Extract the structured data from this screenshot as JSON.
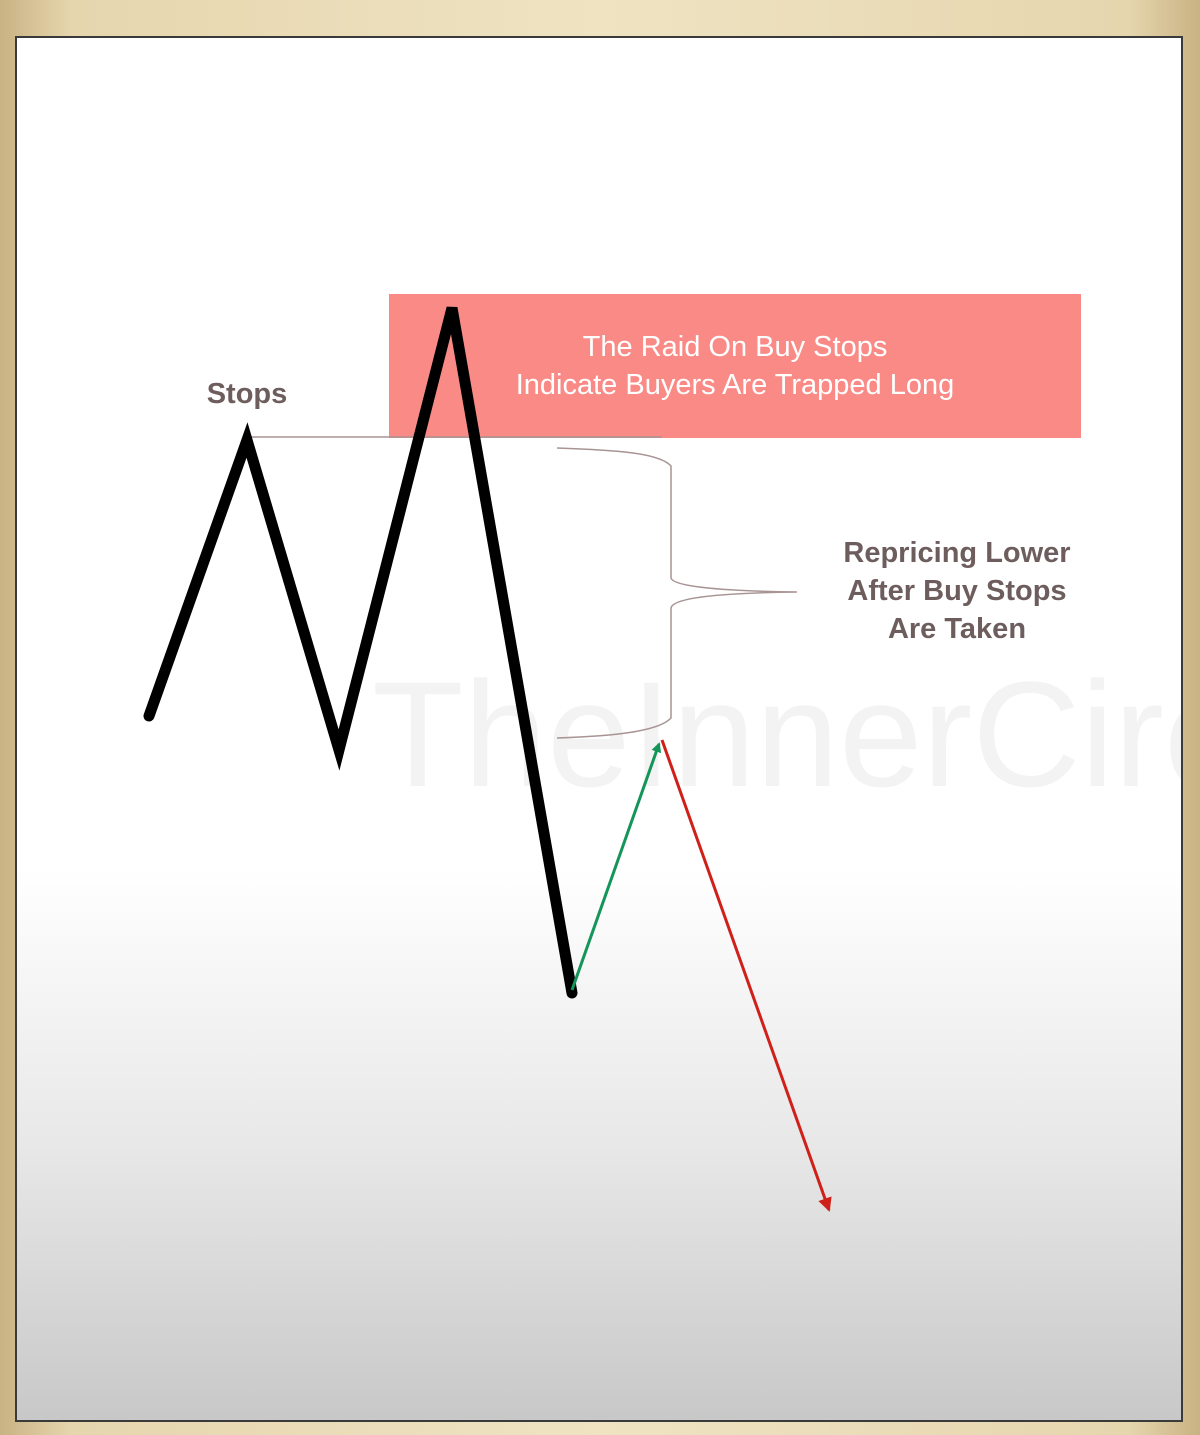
{
  "diagram": {
    "raid_box": {
      "line1": "The Raid On Buy Stops",
      "line2": "Indicate Buyers Are Trapped Long",
      "fill_color": "#f98a86"
    },
    "stops_label": "Stops",
    "repricing_label": {
      "line1": "Repricing Lower",
      "line2": "After Buy Stops",
      "line3": "Are Taken"
    },
    "watermark": "TheInnerCircle",
    "colors": {
      "price_line": "#000000",
      "retrace_arrow": "#14955a",
      "continuation_arrow": "#d0201a",
      "annotation_lines": "#a89494",
      "label_text": "#6e5d5d"
    },
    "icons": [
      "green-up-arrow",
      "red-down-arrow"
    ]
  }
}
